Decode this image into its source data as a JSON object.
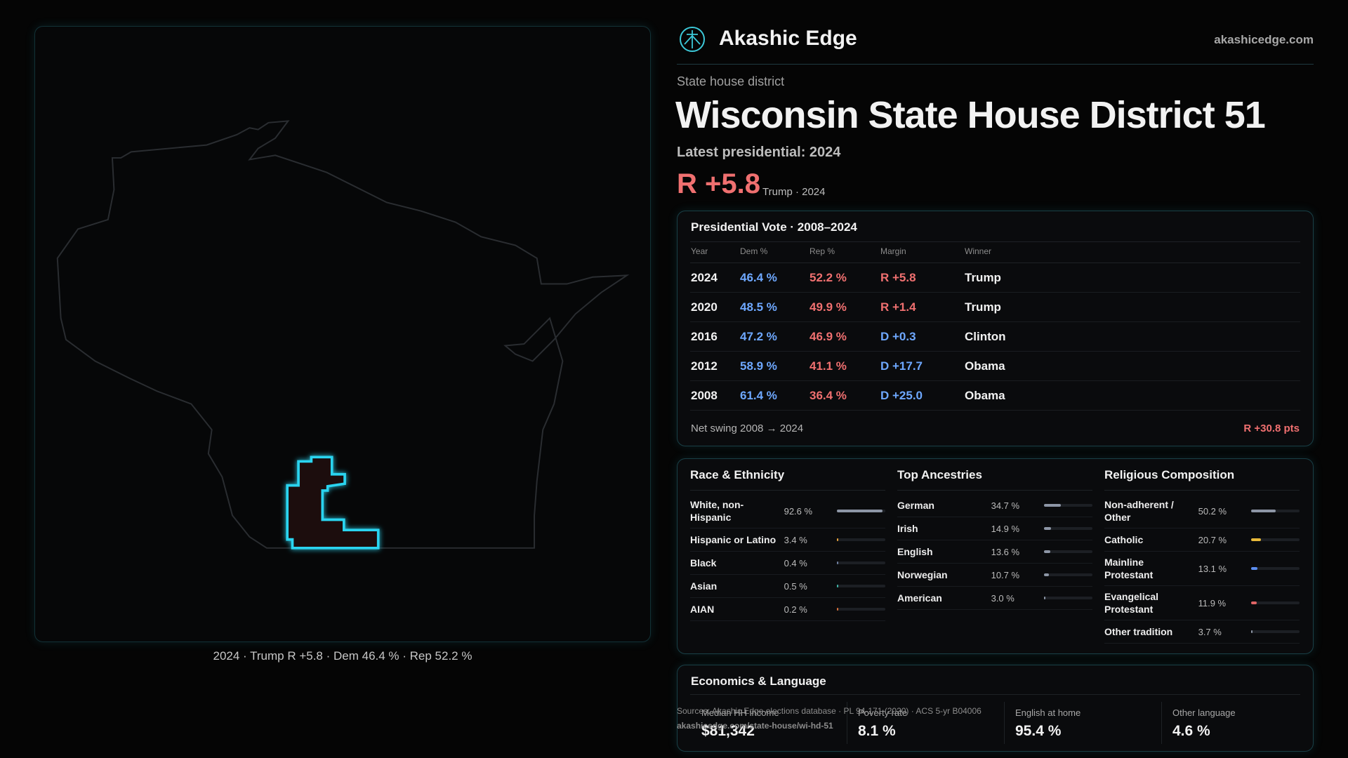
{
  "brand": {
    "name": "Akashic Edge",
    "site": "akashicedge.com"
  },
  "header": {
    "kicker": "State house district",
    "title": "Wisconsin State House District 51",
    "latest": "Latest presidential: 2024",
    "margin": "R +5.8",
    "margin_note": "Trump · 2024"
  },
  "map": {
    "caption": "2024 · Trump R +5.8 · Dem 46.4 % · Rep 52.2 %"
  },
  "vote_table": {
    "title": "Presidential Vote · 2008–2024",
    "columns": [
      "Year",
      "Dem %",
      "Rep %",
      "Margin",
      "Winner"
    ],
    "rows": [
      [
        "2024",
        "46.4 %",
        "52.2 %",
        "R +5.8",
        "Trump"
      ],
      [
        "2020",
        "48.5 %",
        "49.9 %",
        "R +1.4",
        "Trump"
      ],
      [
        "2016",
        "47.2 %",
        "46.9 %",
        "D +0.3",
        "Clinton"
      ],
      [
        "2012",
        "58.9 %",
        "41.1 %",
        "D +17.7",
        "Obama"
      ],
      [
        "2008",
        "61.4 %",
        "36.4 %",
        "D +25.0",
        "Obama"
      ]
    ],
    "footer": {
      "label": "Net swing 2008 → 2024",
      "value": "R +30.8 pts"
    }
  },
  "race": {
    "title": "Race & Ethnicity",
    "items": [
      {
        "name": "White, non-Hispanic",
        "value": 92.6,
        "value_label": "92.6 %",
        "color": "#8d96a6"
      },
      {
        "name": "Hispanic or Latino",
        "value": 3.4,
        "value_label": "3.4 %",
        "color": "#e8a23a"
      },
      {
        "name": "Black",
        "value": 0.4,
        "value_label": "0.4 %",
        "color": "#6f7f9f"
      },
      {
        "name": "Asian",
        "value": 0.5,
        "value_label": "0.5 %",
        "color": "#3fb6a8"
      },
      {
        "name": "AIAN",
        "value": 0.2,
        "value_label": "0.2 %",
        "color": "#d9703a"
      }
    ]
  },
  "ancestry": {
    "title": "Top Ancestries",
    "items": [
      {
        "name": "German",
        "value": 34.7,
        "value_label": "34.7 %",
        "color": "#8d96a6"
      },
      {
        "name": "Irish",
        "value": 14.9,
        "value_label": "14.9 %",
        "color": "#8d96a6"
      },
      {
        "name": "English",
        "value": 13.6,
        "value_label": "13.6 %",
        "color": "#8d96a6"
      },
      {
        "name": "Norwegian",
        "value": 10.7,
        "value_label": "10.7 %",
        "color": "#8d96a6"
      },
      {
        "name": "American",
        "value": 3.0,
        "value_label": "3.0 %",
        "color": "#8d96a6"
      }
    ]
  },
  "religion": {
    "title": "Religious Composition",
    "items": [
      {
        "name": "Non-adherent / Other",
        "value": 50.2,
        "value_label": "50.2 %",
        "color": "#8d96a6"
      },
      {
        "name": "Catholic",
        "value": 20.7,
        "value_label": "20.7 %",
        "color": "#e8b93a"
      },
      {
        "name": "Mainline Protestant",
        "value": 13.1,
        "value_label": "13.1 %",
        "color": "#5b8def"
      },
      {
        "name": "Evangelical Protestant",
        "value": 11.9,
        "value_label": "11.9 %",
        "color": "#e06565"
      },
      {
        "name": "Other tradition",
        "value": 3.7,
        "value_label": "3.7 %",
        "color": "#8d96a6"
      }
    ]
  },
  "economics": {
    "title": "Economics & Language",
    "stats": [
      {
        "label": "Median HH income",
        "value": "$81,342"
      },
      {
        "label": "Poverty rate",
        "value": "8.1 %"
      },
      {
        "label": "English at home",
        "value": "95.4 %"
      },
      {
        "label": "Other language",
        "value": "4.6 %"
      }
    ]
  },
  "sources": {
    "text": "Sources: Akashic Edge elections database · PL 94-171 (2020) · ACS 5-yr B04006",
    "url": "akashicedge.com/state-house/wi-hd-51"
  }
}
